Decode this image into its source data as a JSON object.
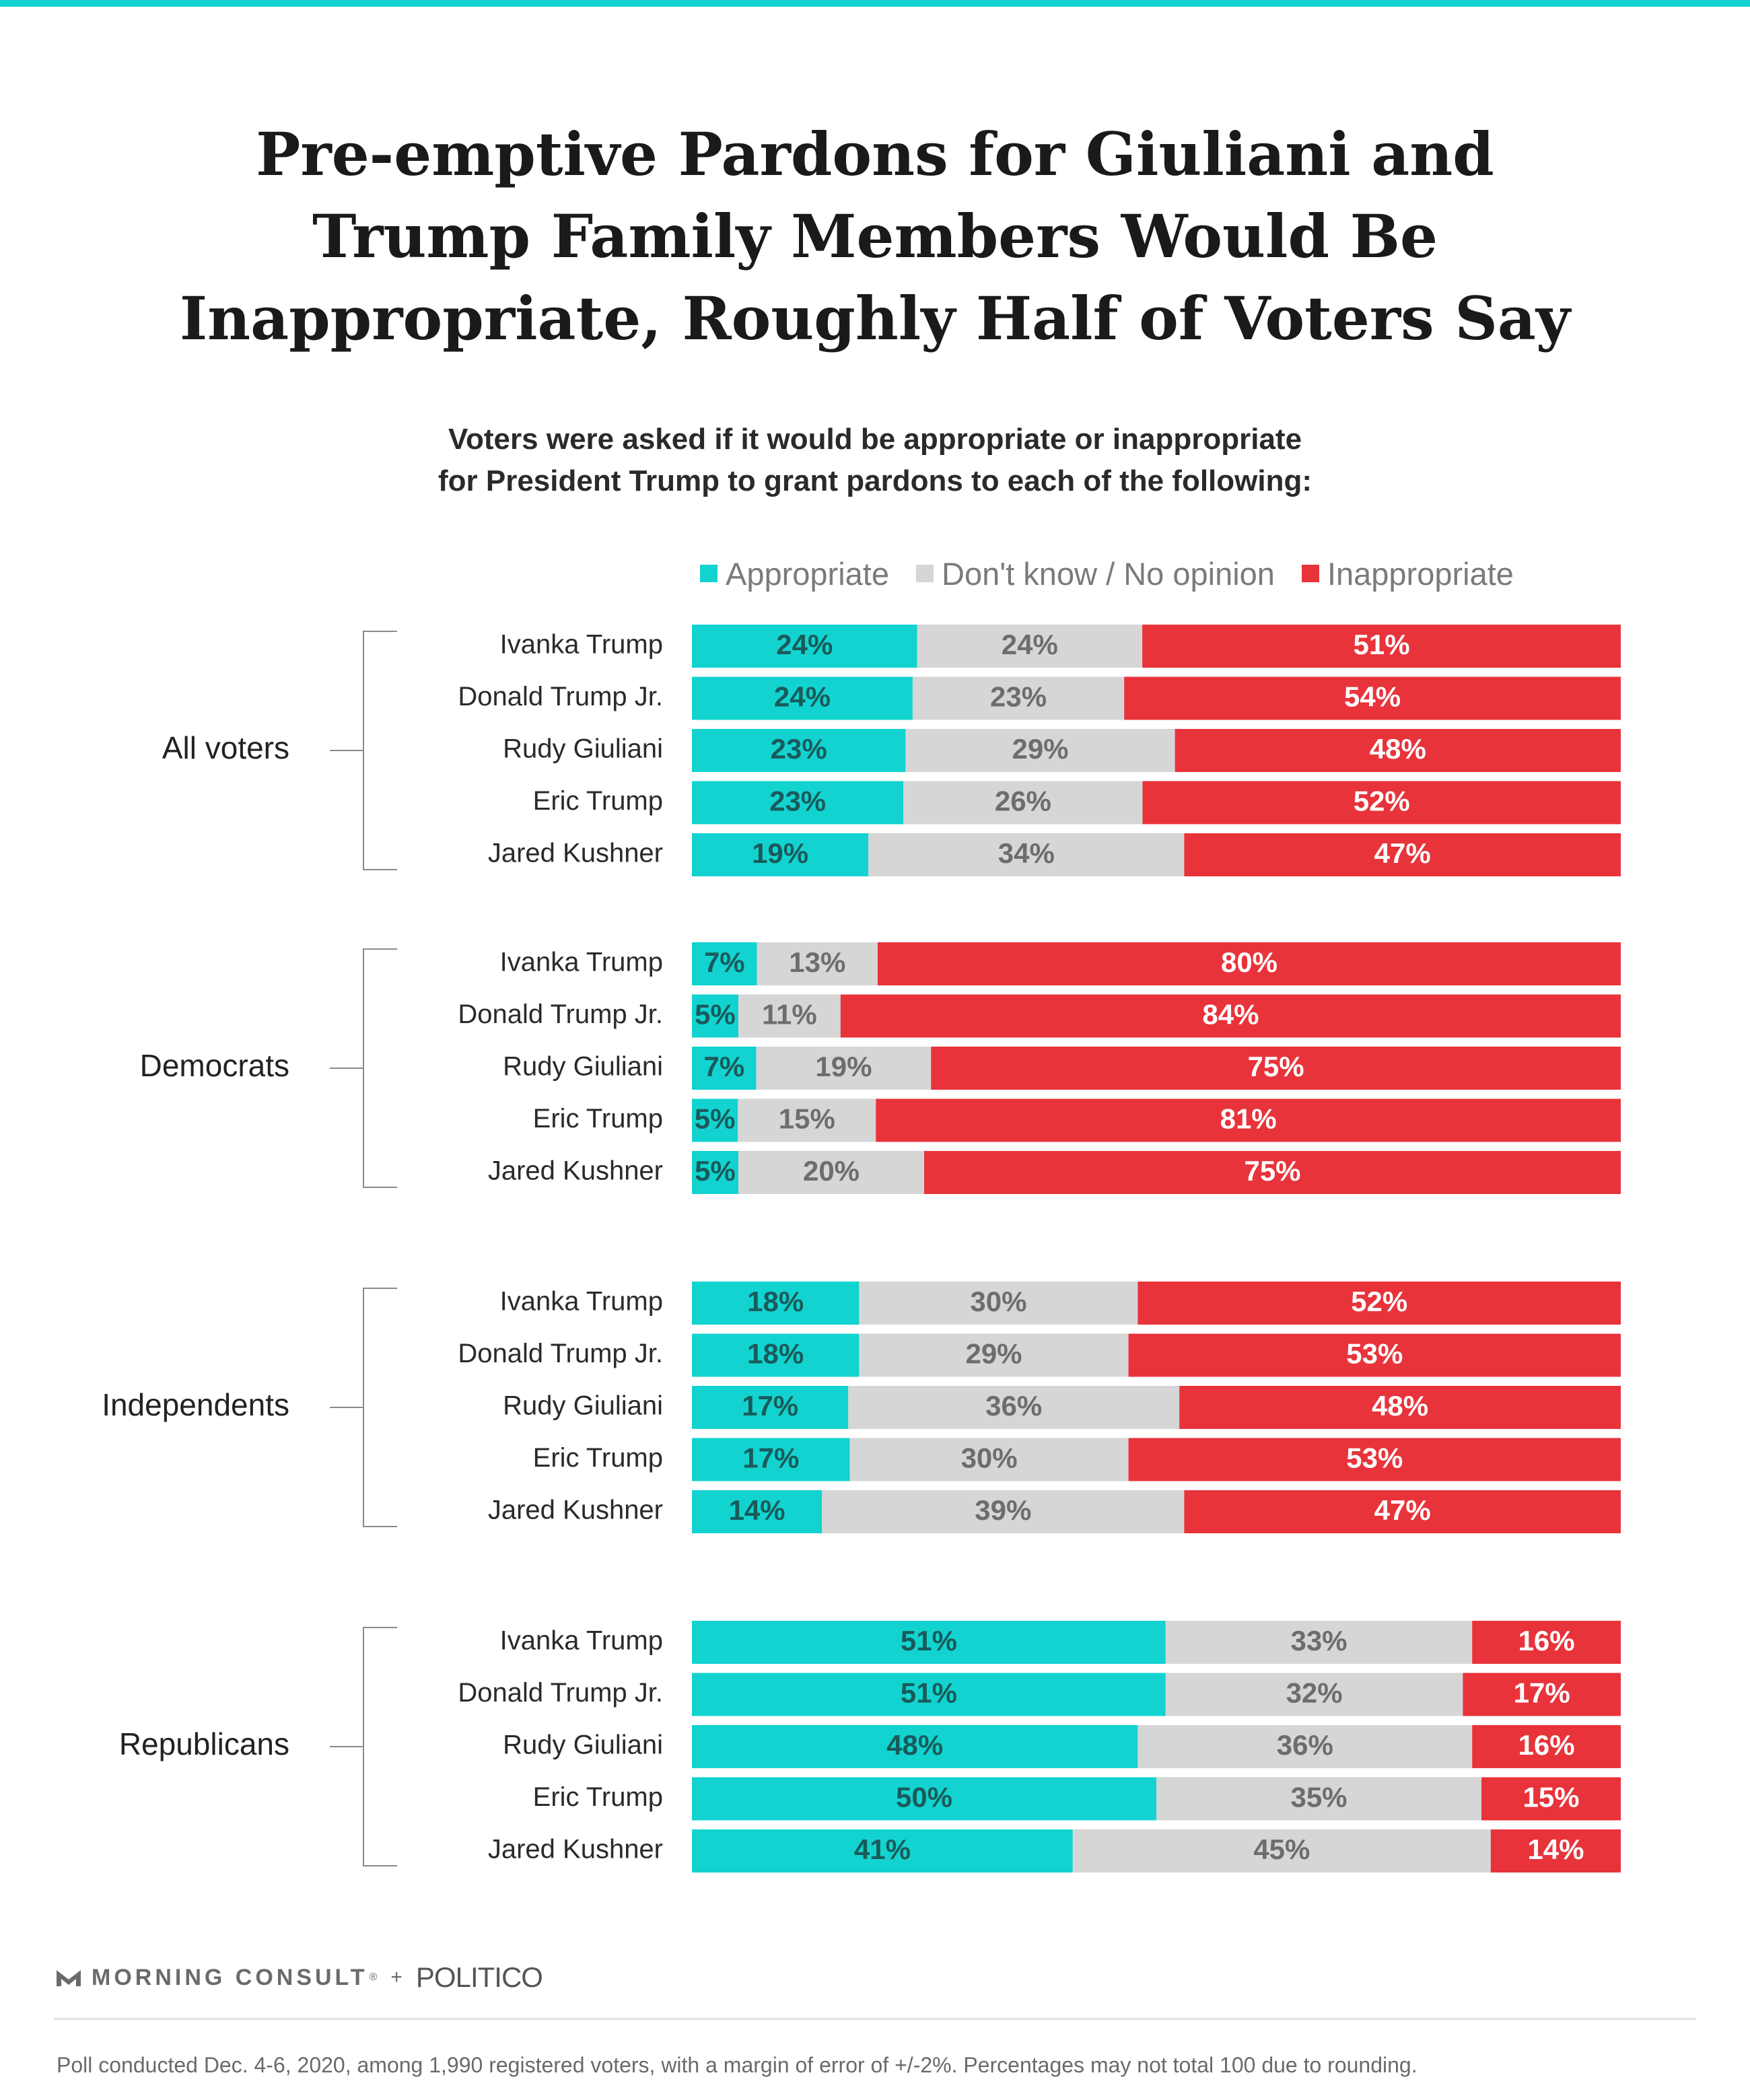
{
  "title_lines": [
    "Pre-emptive Pardons for Giuliani and",
    "Trump Family Members Would Be",
    "Inappropriate, Roughly Half of Voters Say"
  ],
  "subtitle_lines": [
    "Voters were asked if it would be appropriate or inappropriate",
    "for President Trump to grant pardons to each of the following:"
  ],
  "legend": [
    {
      "label": "Appropriate",
      "color": "#12d3cf"
    },
    {
      "label": "Don't know / No opinion",
      "color": "#d6d6d6"
    },
    {
      "label": "Inappropriate",
      "color": "#e8333b"
    }
  ],
  "colors": {
    "appropriate": "#12d3cf",
    "dont_know": "#d6d6d6",
    "inappropriate": "#e8333b",
    "top_bar": "#12d3cf",
    "label_dark": "#1a5a5a",
    "label_gray": "#6d6d6d",
    "label_white": "#ffffff"
  },
  "chart_data": {
    "type": "bar",
    "orientation": "horizontal",
    "stacked": true,
    "categories": [
      "Ivanka Trump",
      "Donald Trump Jr.",
      "Rudy Giuliani",
      "Eric Trump",
      "Jared Kushner"
    ],
    "series_names": [
      "Appropriate",
      "Don't know / No opinion",
      "Inappropriate"
    ],
    "groups": [
      {
        "name": "All voters",
        "rows": [
          {
            "label": "Ivanka Trump",
            "values": [
              24,
              24,
              51
            ]
          },
          {
            "label": "Donald Trump Jr.",
            "values": [
              24,
              23,
              54
            ]
          },
          {
            "label": "Rudy Giuliani",
            "values": [
              23,
              29,
              48
            ]
          },
          {
            "label": "Eric Trump",
            "values": [
              23,
              26,
              52
            ]
          },
          {
            "label": "Jared Kushner",
            "values": [
              19,
              34,
              47
            ]
          }
        ]
      },
      {
        "name": "Democrats",
        "rows": [
          {
            "label": "Ivanka Trump",
            "values": [
              7,
              13,
              80
            ]
          },
          {
            "label": "Donald Trump Jr.",
            "values": [
              5,
              11,
              84
            ]
          },
          {
            "label": "Rudy Giuliani",
            "values": [
              7,
              19,
              75
            ]
          },
          {
            "label": "Eric Trump",
            "values": [
              5,
              15,
              81
            ]
          },
          {
            "label": "Jared Kushner",
            "values": [
              5,
              20,
              75
            ]
          }
        ]
      },
      {
        "name": "Independents",
        "rows": [
          {
            "label": "Ivanka Trump",
            "values": [
              18,
              30,
              52
            ]
          },
          {
            "label": "Donald Trump Jr.",
            "values": [
              18,
              29,
              53
            ]
          },
          {
            "label": "Rudy Giuliani",
            "values": [
              17,
              36,
              48
            ]
          },
          {
            "label": "Eric Trump",
            "values": [
              17,
              30,
              53
            ]
          },
          {
            "label": "Jared Kushner",
            "values": [
              14,
              39,
              47
            ]
          }
        ]
      },
      {
        "name": "Republicans",
        "rows": [
          {
            "label": "Ivanka Trump",
            "values": [
              51,
              33,
              16
            ]
          },
          {
            "label": "Donald Trump Jr.",
            "values": [
              51,
              32,
              17
            ]
          },
          {
            "label": "Rudy Giuliani",
            "values": [
              48,
              36,
              16
            ]
          },
          {
            "label": "Eric Trump",
            "values": [
              50,
              35,
              15
            ]
          },
          {
            "label": "Jared Kushner",
            "values": [
              41,
              45,
              14
            ]
          }
        ]
      }
    ]
  },
  "branding": {
    "morning_consult": "MORNING CONSULT",
    "trademark": "®",
    "plus": "+",
    "politico": "POLITICO"
  },
  "footnote": "Poll conducted Dec. 4-6, 2020, among 1,990 registered voters, with a margin of error of +/-2%. Percentages may not total 100 due to rounding."
}
